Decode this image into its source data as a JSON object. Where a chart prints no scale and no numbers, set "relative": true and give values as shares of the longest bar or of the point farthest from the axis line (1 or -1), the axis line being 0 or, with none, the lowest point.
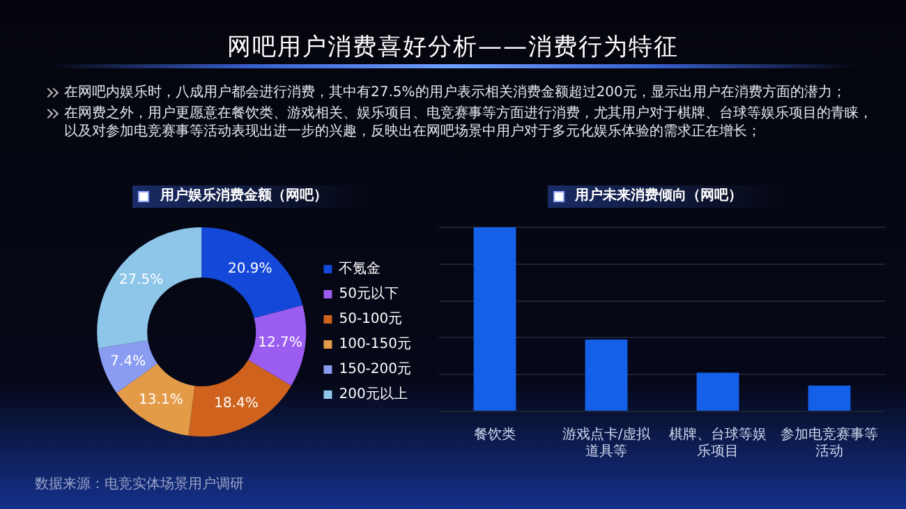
{
  "chart_data": [
    {
      "type": "other",
      "title": "网吧用户消费喜好分析——消费行为特征",
      "annotations": [
        "在网吧内娱乐时，八成用户都会进行消费，其中有27.5%的用户表示相关消费金额超过200元，显示出用户在消费方面的潜力；",
        "在网费之外，用户更愿意在餐饮类、游戏相关、娱乐项目、电竞赛事等方面进行消费，尤其用户对于棋牌、台球等娱乐项目的青睐，以及对参加电竞赛事等活动表现出进一步的兴趣，反映出在网吧场景中用户对于多元化娱乐体验的需求正在增长；",
        "数据来源：电竞实体场景用户调研"
      ]
    },
    {
      "type": "donut",
      "title": "用户娱乐消费金额（网吧）",
      "categories": [
        "不氪金",
        "50元以下",
        "50-100元",
        "100-150元",
        "150-200元",
        "200元以上"
      ],
      "values": [
        20.9,
        12.7,
        18.4,
        13.1,
        7.4,
        27.5
      ],
      "colors": [
        "#1448d8",
        "#9b5cf0",
        "#cf621c",
        "#e39b48",
        "#8a9cf2",
        "#8ec6ea"
      ],
      "value_labels": [
        "20.9%",
        "12.7%",
        "18.4%",
        "13.1%",
        "7.4%",
        "27.5%"
      ],
      "legend": "right"
    },
    {
      "type": "bar",
      "title": "用户未来消费倾向（网吧）",
      "categories": [
        "餐饮类",
        "游戏点卡/虚拟道具等",
        "棋牌、台球等娱乐项目",
        "参加电竞赛事等活动"
      ],
      "values": [
        1,
        0.39,
        0.21,
        0.14
      ],
      "color": "#1560e8",
      "relative": true,
      "grid": "y"
    }
  ]
}
